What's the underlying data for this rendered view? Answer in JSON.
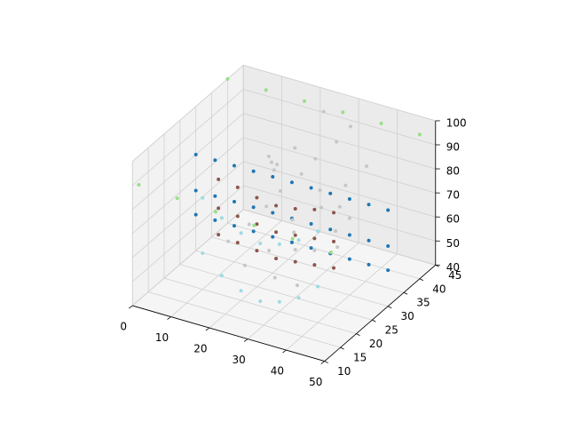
{
  "chart_data": {
    "type": "scatter3d",
    "xlim": [
      0,
      50
    ],
    "xticks": [
      0,
      10,
      20,
      30,
      40,
      50
    ],
    "ylim": [
      10,
      45
    ],
    "yticks": [
      10,
      15,
      20,
      25,
      30,
      35,
      40,
      45
    ],
    "zlim": [
      40,
      100
    ],
    "zticks": [
      40,
      50,
      60,
      70,
      80,
      90,
      100
    ],
    "grid": true,
    "series": [
      {
        "color": "#1f77b4",
        "x": [
          0,
          5,
          10,
          15,
          20,
          25,
          30,
          35,
          40,
          45,
          50,
          0,
          5,
          10,
          15,
          20,
          25,
          30,
          35,
          40,
          45,
          50,
          0,
          5,
          10,
          15,
          20,
          25,
          30,
          35,
          40,
          45,
          50
        ],
        "y": [
          30,
          30,
          30,
          30,
          30,
          30,
          30,
          30,
          30,
          30,
          30,
          30,
          30,
          30,
          30,
          30,
          30,
          30,
          30,
          30,
          30,
          30,
          30,
          30,
          30,
          30,
          30,
          30,
          30,
          30,
          30,
          30,
          30
        ],
        "z": [
          80,
          80,
          80,
          80,
          80,
          80,
          80,
          80,
          80,
          80,
          80,
          65,
          65,
          65,
          65,
          65,
          65,
          65,
          65,
          65,
          65,
          65,
          55,
          55,
          55,
          55,
          55,
          55,
          55,
          55,
          55,
          55,
          55
        ]
      },
      {
        "color": "#8c564b",
        "x": [
          10,
          15,
          20,
          25,
          30,
          35,
          40,
          10,
          15,
          20,
          25,
          30,
          35,
          40,
          10,
          15,
          20,
          25,
          30,
          35,
          40
        ],
        "y": [
          25,
          25,
          25,
          25,
          25,
          25,
          25,
          25,
          25,
          25,
          25,
          25,
          25,
          25,
          25,
          25,
          25,
          25,
          25,
          25,
          25
        ],
        "z": [
          80,
          79,
          77,
          76,
          77,
          79,
          80,
          68,
          67,
          66,
          65,
          66,
          67,
          68,
          57,
          56,
          55,
          54,
          55,
          56,
          57
        ]
      },
      {
        "color": "#9edae5",
        "x": [
          10,
          15,
          20,
          25,
          30,
          35,
          40,
          10,
          15,
          20,
          25,
          30,
          35,
          40
        ],
        "y": [
          20,
          20,
          20,
          20,
          20,
          20,
          20,
          20,
          20,
          20,
          20,
          20,
          20,
          20
        ],
        "z": [
          78,
          72,
          68,
          66,
          68,
          72,
          78,
          55,
          48,
          44,
          42,
          44,
          48,
          55
        ]
      },
      {
        "color": "#98df8a",
        "x": [
          0,
          10,
          20,
          30,
          40,
          50,
          0,
          10,
          20,
          30,
          40,
          50
        ],
        "y": [
          40,
          40,
          40,
          40,
          40,
          40,
          12,
          12,
          12,
          12,
          12,
          12
        ],
        "z": [
          100,
          100,
          100,
          100,
          100,
          100,
          88,
          87,
          86,
          85,
          84,
          83
        ]
      },
      {
        "color": "#c7c7c7",
        "x": [
          15,
          18,
          20,
          22,
          25,
          27,
          30,
          32,
          35,
          38,
          40,
          17,
          21,
          24,
          28,
          31,
          34,
          37,
          19,
          23,
          26,
          29,
          33,
          36,
          20,
          25,
          30,
          35,
          22,
          28
        ],
        "y": [
          22,
          25,
          28,
          30,
          33,
          35,
          38,
          40,
          25,
          28,
          30,
          35,
          20,
          24,
          27,
          32,
          36,
          39,
          30,
          26,
          29,
          34,
          22,
          31,
          37,
          40,
          25,
          33,
          28,
          21
        ],
        "z": [
          60,
          65,
          70,
          75,
          80,
          85,
          90,
          95,
          62,
          68,
          72,
          78,
          55,
          58,
          64,
          70,
          76,
          82,
          88,
          92,
          66,
          74,
          50,
          57,
          84,
          98,
          60,
          71,
          86,
          52
        ]
      }
    ]
  }
}
